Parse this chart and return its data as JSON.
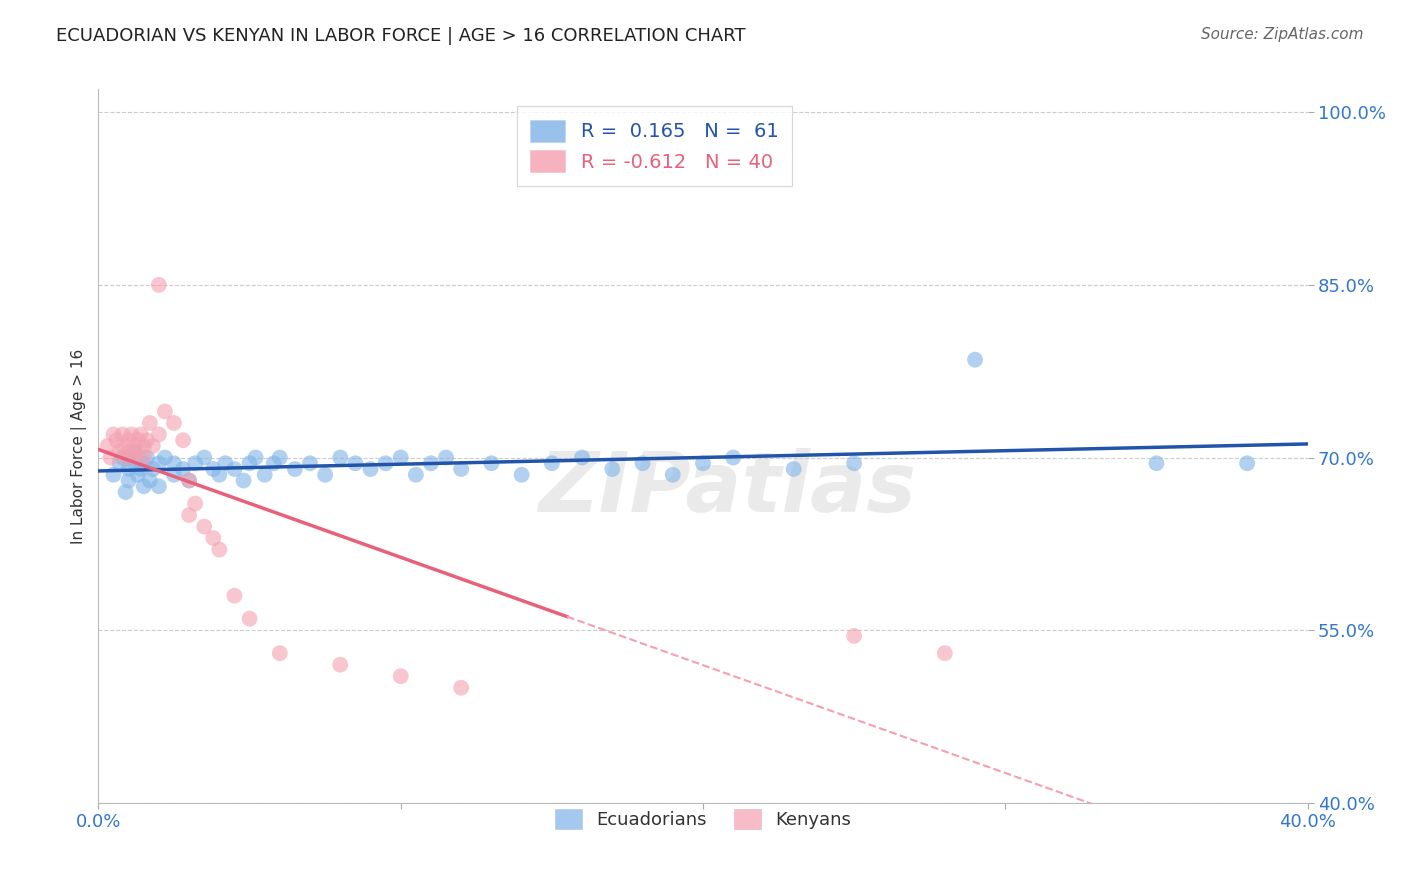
{
  "title": "ECUADORIAN VS KENYAN IN LABOR FORCE | AGE > 16 CORRELATION CHART",
  "source": "Source: ZipAtlas.com",
  "ylabel": "In Labor Force | Age > 16",
  "xlim": [
    0.0,
    0.4
  ],
  "ylim": [
    0.4,
    1.02
  ],
  "yticks": [
    0.4,
    0.55,
    0.7,
    0.85,
    1.0
  ],
  "ytick_labels": [
    "40.0%",
    "55.0%",
    "70.0%",
    "85.0%",
    "100.0%"
  ],
  "xticks": [
    0.0,
    0.1,
    0.2,
    0.3,
    0.4
  ],
  "xtick_labels": [
    "0.0%",
    "",
    "",
    "",
    "40.0%"
  ],
  "background_color": "#ffffff",
  "grid_color": "#cccccc",
  "watermark": "ZIPatlas",
  "blue_color": "#7fb3e8",
  "pink_color": "#f4a0b0",
  "blue_line_color": "#2255aa",
  "pink_line_color": "#e8607a",
  "pink_dash_color": "#f4a0b0",
  "R_blue": 0.165,
  "N_blue": 61,
  "R_pink": -0.612,
  "N_pink": 40,
  "ecu_x": [
    0.005,
    0.007,
    0.008,
    0.009,
    0.01,
    0.01,
    0.01,
    0.012,
    0.012,
    0.013,
    0.014,
    0.015,
    0.015,
    0.016,
    0.017,
    0.018,
    0.02,
    0.02,
    0.022,
    0.025,
    0.025,
    0.028,
    0.03,
    0.032,
    0.035,
    0.038,
    0.04,
    0.042,
    0.045,
    0.048,
    0.05,
    0.052,
    0.055,
    0.058,
    0.06,
    0.065,
    0.07,
    0.075,
    0.08,
    0.085,
    0.09,
    0.095,
    0.1,
    0.105,
    0.11,
    0.115,
    0.12,
    0.13,
    0.14,
    0.15,
    0.16,
    0.17,
    0.18,
    0.19,
    0.2,
    0.21,
    0.23,
    0.25,
    0.29,
    0.35,
    0.38
  ],
  "ecu_y": [
    0.685,
    0.695,
    0.7,
    0.67,
    0.68,
    0.69,
    0.7,
    0.695,
    0.705,
    0.685,
    0.69,
    0.675,
    0.695,
    0.7,
    0.68,
    0.69,
    0.675,
    0.695,
    0.7,
    0.685,
    0.695,
    0.69,
    0.68,
    0.695,
    0.7,
    0.69,
    0.685,
    0.695,
    0.69,
    0.68,
    0.695,
    0.7,
    0.685,
    0.695,
    0.7,
    0.69,
    0.695,
    0.685,
    0.7,
    0.695,
    0.69,
    0.695,
    0.7,
    0.685,
    0.695,
    0.7,
    0.69,
    0.695,
    0.685,
    0.695,
    0.7,
    0.69,
    0.695,
    0.685,
    0.695,
    0.7,
    0.69,
    0.695,
    0.785,
    0.695,
    0.695
  ],
  "ken_x": [
    0.003,
    0.004,
    0.005,
    0.006,
    0.007,
    0.008,
    0.008,
    0.009,
    0.01,
    0.01,
    0.011,
    0.012,
    0.012,
    0.013,
    0.013,
    0.014,
    0.015,
    0.015,
    0.016,
    0.017,
    0.018,
    0.02,
    0.02,
    0.022,
    0.025,
    0.028,
    0.03,
    0.03,
    0.032,
    0.035,
    0.038,
    0.04,
    0.045,
    0.05,
    0.06,
    0.08,
    0.1,
    0.12,
    0.25,
    0.28
  ],
  "ken_y": [
    0.71,
    0.7,
    0.72,
    0.715,
    0.705,
    0.71,
    0.72,
    0.7,
    0.715,
    0.705,
    0.72,
    0.71,
    0.7,
    0.715,
    0.705,
    0.72,
    0.71,
    0.7,
    0.715,
    0.73,
    0.71,
    0.85,
    0.72,
    0.74,
    0.73,
    0.715,
    0.68,
    0.65,
    0.66,
    0.64,
    0.63,
    0.62,
    0.58,
    0.56,
    0.53,
    0.52,
    0.51,
    0.5,
    0.545,
    0.53
  ]
}
